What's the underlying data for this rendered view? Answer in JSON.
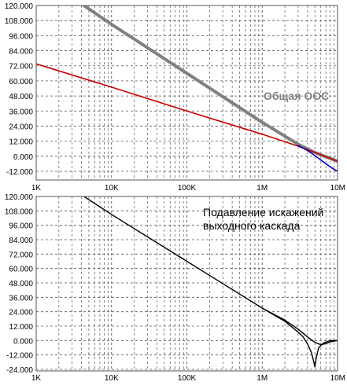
{
  "chart_data": [
    {
      "type": "line",
      "title": "",
      "x_scale": "log",
      "xlim": [
        1000,
        10000000
      ],
      "ylim": [
        -12,
        120
      ],
      "x_tick_labels": [
        "1K",
        "10K",
        "100K",
        "1M",
        "10M"
      ],
      "y_tick_labels": [
        "120.000",
        "108.000",
        "96.000",
        "84.000",
        "72.000",
        "60.000",
        "48.000",
        "36.000",
        "24.000",
        "12.000",
        "0.000",
        "-12.000"
      ],
      "grid": true,
      "annotation": "Общая ООС",
      "series": [
        {
          "color": "#808080",
          "x": [
            4300,
            10000,
            100000,
            1000000,
            3000000,
            5000000,
            10000000
          ],
          "y": [
            120,
            105,
            66,
            27,
            9.5,
            3,
            -4
          ]
        },
        {
          "color": "#cc0000",
          "x": [
            1000,
            10000,
            100000,
            1000000,
            3000000,
            5000000,
            10000000
          ],
          "y": [
            73.5,
            55,
            36,
            17.5,
            8,
            3,
            -4
          ]
        },
        {
          "color": "#0000cc",
          "x": [
            3000000,
            4000000,
            5000000,
            6000000,
            7000000,
            8500000,
            10000000
          ],
          "y": [
            8.5,
            4.5,
            0.5,
            -3,
            -6,
            -9.5,
            -12
          ]
        }
      ]
    },
    {
      "type": "line",
      "title": "",
      "x_scale": "log",
      "xlim": [
        1000,
        10000000
      ],
      "ylim": [
        -24,
        120
      ],
      "x_tick_labels": [
        "1K",
        "10K",
        "100K",
        "1M",
        "10M"
      ],
      "y_tick_labels": [
        "120.000",
        "108.000",
        "96.000",
        "84.000",
        "72.000",
        "60.000",
        "48.000",
        "36.000",
        "24.000",
        "12.000",
        "0.000",
        "-12.000",
        "-24.000"
      ],
      "grid": true,
      "annotation_lines": [
        "Подавление искажений",
        "выходного каскада"
      ],
      "series": [
        {
          "color": "#000000",
          "x": [
            4300,
            10000,
            100000,
            1000000,
            2000000,
            3000000,
            4000000,
            5000000,
            6000000,
            7000000,
            8000000,
            10000000
          ],
          "y": [
            120,
            105,
            66,
            27,
            17,
            9.5,
            3,
            -1.5,
            -3.5,
            -2.5,
            -1,
            0
          ]
        },
        {
          "color": "#000000",
          "x": [
            1000000,
            2000000,
            3000000,
            3500000,
            4000000,
            4500000,
            4800000,
            5000000,
            5200000,
            5600000,
            6500000,
            8000000,
            10000000
          ],
          "y": [
            27,
            16,
            7,
            3,
            -3,
            -10,
            -17,
            -22,
            -15,
            -6,
            -2,
            0,
            0
          ]
        }
      ]
    }
  ]
}
